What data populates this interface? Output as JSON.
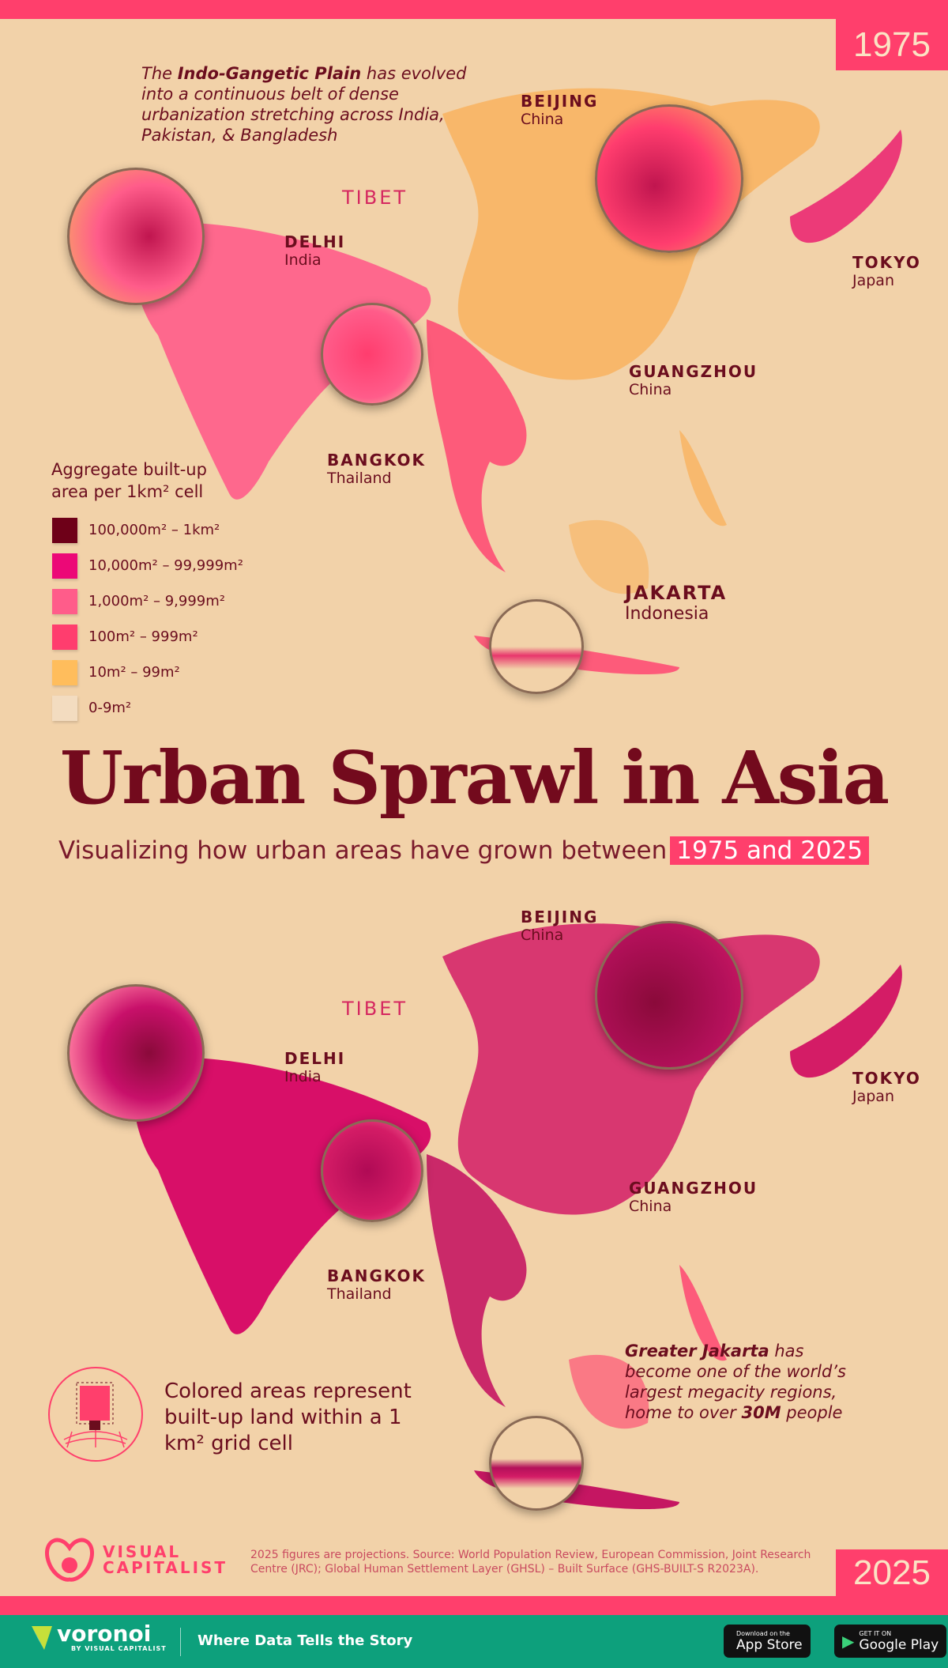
{
  "badges": {
    "top_year": "1975",
    "bottom_year": "2025"
  },
  "top_map": {
    "annotation": {
      "prefix": "The ",
      "bold": "Indo-Gangetic Plain",
      "rest": " has evolved into a continuous belt of dense urbanization stretching across India, Pakistan, & Bangladesh"
    },
    "tibet": "TIBET",
    "cities": [
      {
        "name": "BEIJING",
        "country": "China"
      },
      {
        "name": "DELHI",
        "country": "India"
      },
      {
        "name": "TOKYO",
        "country": "Japan"
      },
      {
        "name": "GUANGZHOU",
        "country": "China"
      },
      {
        "name": "BANGKOK",
        "country": "Thailand"
      },
      {
        "name": "JAKARTA",
        "country": "Indonesia"
      }
    ]
  },
  "legend": {
    "title_line1": "Aggregate built-up",
    "title_line2": "area per 1km² cell",
    "items": [
      {
        "label": "100,000m² – 1km²",
        "color": "#6e0018"
      },
      {
        "label": "10,000m² – 99,999m²",
        "color": "#ec0877"
      },
      {
        "label": "1,000m² – 9,999m²",
        "color": "#ff5c8a"
      },
      {
        "label": "100m² – 999m²",
        "color": "#ff3d6e"
      },
      {
        "label": "10m² – 99m²",
        "color": "#ffbd5c"
      },
      {
        "label": "0-9m²",
        "color": "#f3dcc0"
      }
    ]
  },
  "title": "Urban Sprawl in Asia",
  "subtitle": {
    "text": "Visualizing how urban areas have grown between",
    "highlight": "1975 and 2025"
  },
  "bottom_map": {
    "tibet": "TIBET",
    "cities": [
      {
        "name": "BEIJING",
        "country": "China"
      },
      {
        "name": "DELHI",
        "country": "India"
      },
      {
        "name": "TOKYO",
        "country": "Japan"
      },
      {
        "name": "GUANGZHOU",
        "country": "China"
      },
      {
        "name": "BANGKOK",
        "country": "Thailand"
      }
    ],
    "annotation": {
      "bold1": "Greater Jakarta",
      "mid": " has become one of the world’s largest megacity regions, home to over ",
      "bold2": "30M",
      "end": " people"
    },
    "icon_note": "Colored areas represent built-up land within a 1 km² grid cell"
  },
  "credits": {
    "logo_line1": "VISUAL",
    "logo_line2": "CAPITALIST",
    "source": "2025 figures are projections. Source: World Population Review, European Commission, Joint Research Centre (JRC); Global Human Settlement Layer (GHSL) – Built Surface (GHS-BUILT-S R2023A)."
  },
  "footer": {
    "brand": "voronoi",
    "brand_sub": "BY VISUAL CAPITALIST",
    "tagline": "Where Data Tells the Story",
    "app_store_small": "Download on the",
    "app_store": "App Store",
    "google_small": "GET IT ON",
    "google": "Google Play"
  },
  "colors": {
    "accent": "#ff3f6c",
    "dark": "#6b0d1e",
    "background": "#f2d2a9",
    "footer": "#0da07c"
  }
}
